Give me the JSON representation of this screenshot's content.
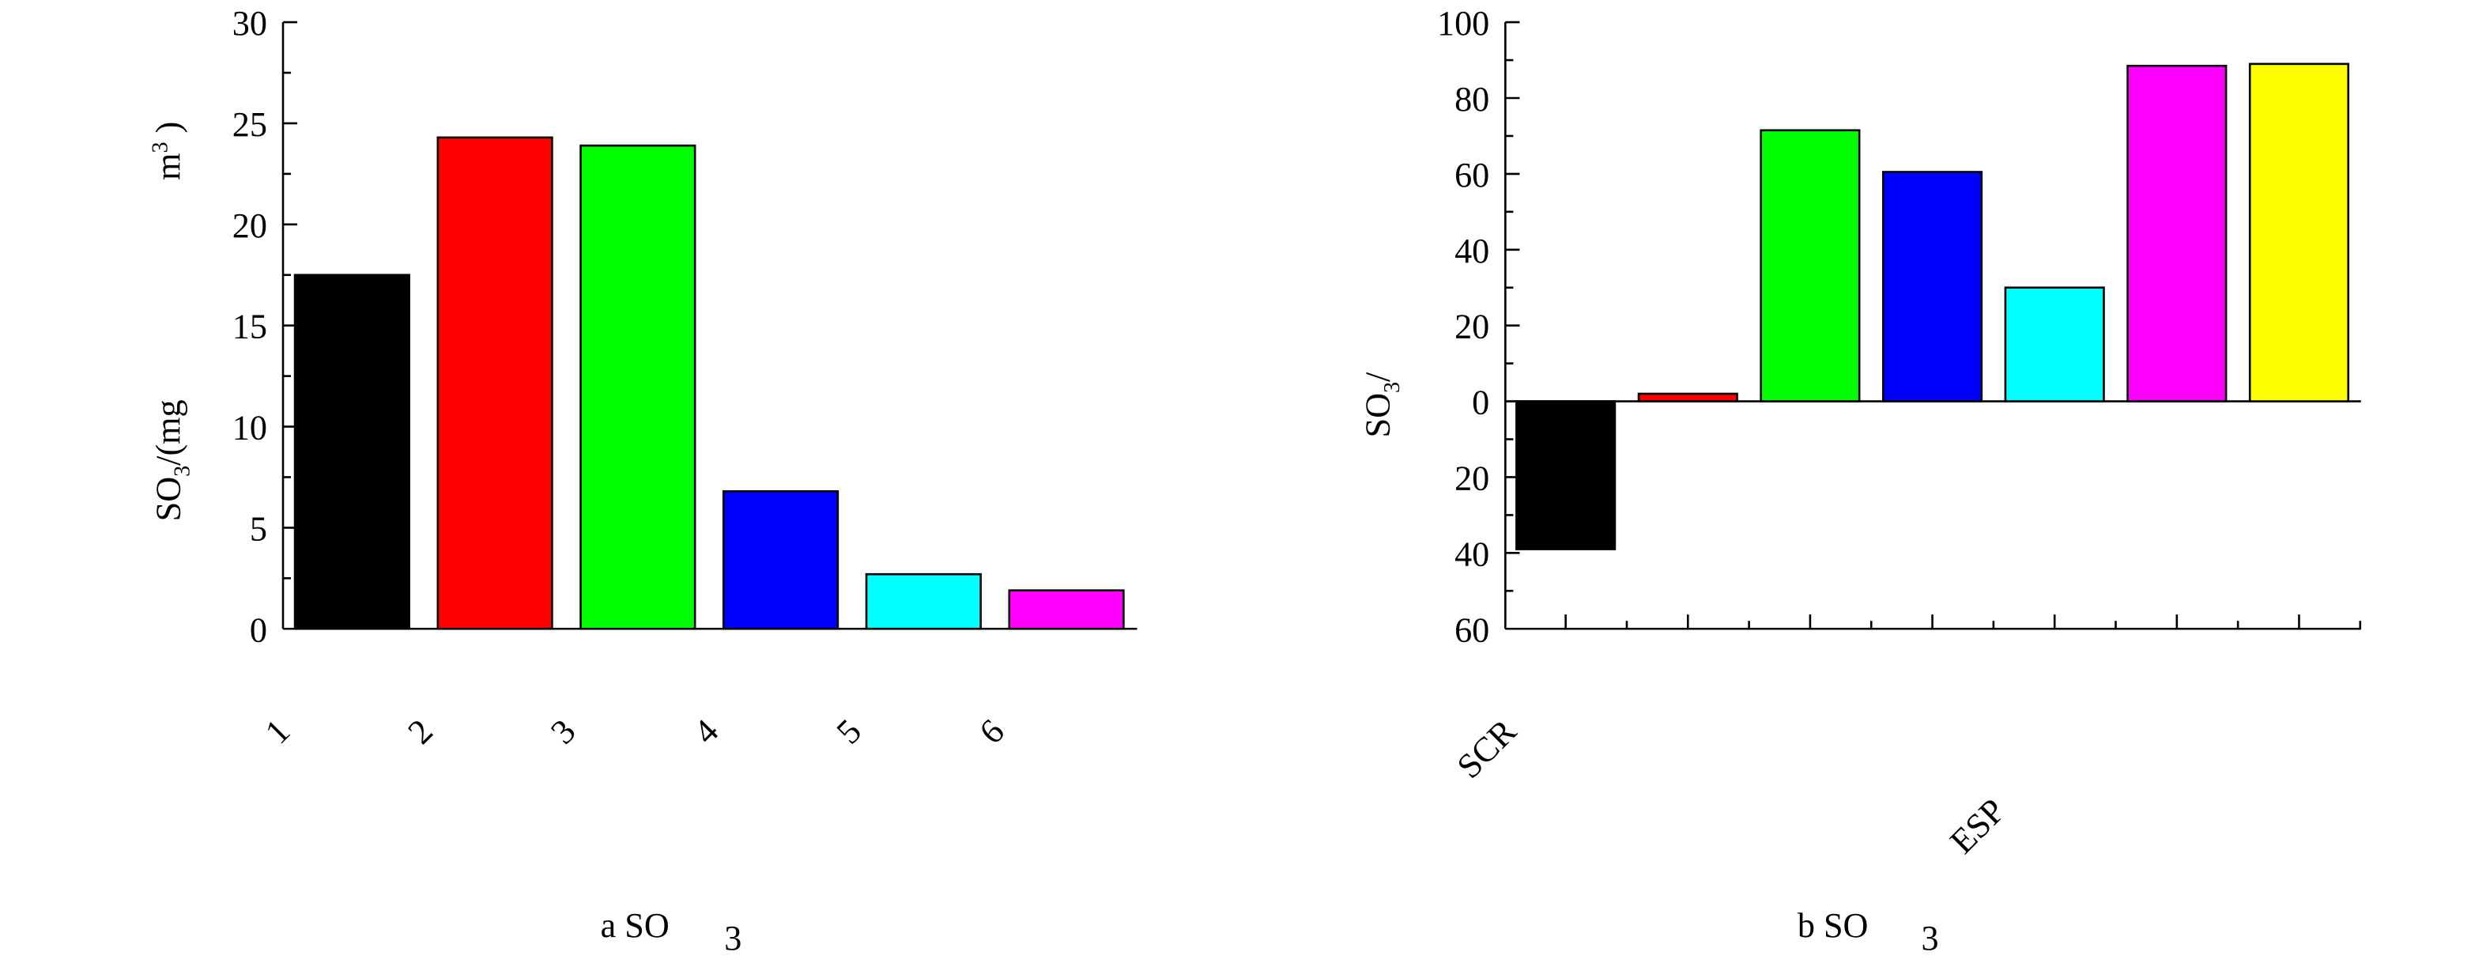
{
  "chart_data": [
    {
      "type": "bar",
      "y_label": [
        "SO",
        "3",
        "/(mg"
      ],
      "y_label_unit": [
        "m",
        "3",
        " )"
      ],
      "caption": [
        "a SO",
        "3"
      ],
      "categories": [
        "1",
        "2",
        "3",
        "4",
        "5",
        "6"
      ],
      "values": [
        17.5,
        24.3,
        23.9,
        6.8,
        2.7,
        1.9
      ],
      "colors": [
        "#000000",
        "#ff0000",
        "#00ff00",
        "#0000ff",
        "#00ffff",
        "#ff00ff"
      ],
      "ylim": [
        0,
        30
      ],
      "yticks": [
        0,
        5,
        10,
        15,
        20,
        25,
        30
      ]
    },
    {
      "type": "bar",
      "y_label": [
        "SO",
        "3",
        "/"
      ],
      "caption": [
        "b SO",
        "3"
      ],
      "categories": [
        "SCR",
        null,
        null,
        null,
        "ESP",
        null,
        null
      ],
      "values": [
        -39,
        2,
        71.5,
        60.5,
        30,
        88.5,
        89
      ],
      "colors": [
        "#000000",
        "#ff0000",
        "#00ff00",
        "#0000ff",
        "#00ffff",
        "#ff00ff",
        "#ffff00"
      ],
      "ylim": [
        -60,
        100
      ],
      "yticks": [
        {
          "value": -60,
          "label": "60"
        },
        {
          "value": -40,
          "label": "40"
        },
        {
          "value": -20,
          "label": "20"
        },
        0,
        20,
        40,
        60,
        80,
        100
      ]
    }
  ]
}
